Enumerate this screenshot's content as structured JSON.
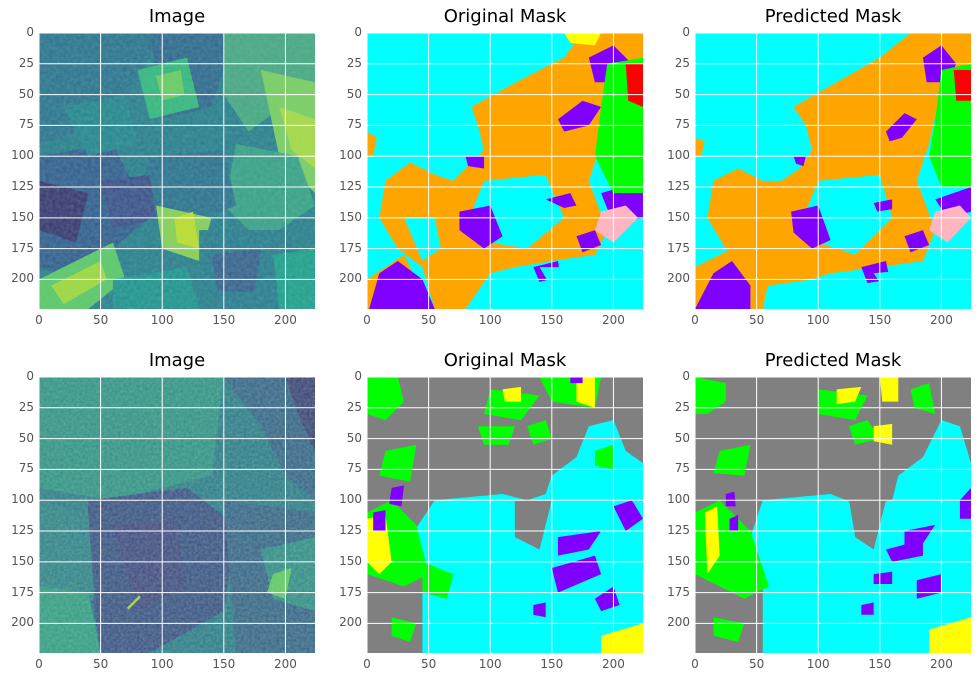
{
  "colors": {
    "cyan": "#00FFFF",
    "orange": "#FFA500",
    "violet": "#8000FF",
    "green": "#00FF00",
    "red": "#FF0000",
    "pink": "#FFB6C1",
    "yellow": "#FFFF00",
    "gray": "#808080"
  },
  "chart_data": [
    {
      "type": "image",
      "title": "Image",
      "row": 1,
      "col": 1,
      "xlim": [
        0,
        224
      ],
      "ylim": [
        224,
        0
      ],
      "xticks": [
        "0",
        "50",
        "100",
        "150",
        "200"
      ],
      "yticks": [
        "0",
        "25",
        "50",
        "75",
        "100",
        "125",
        "150",
        "175",
        "200"
      ],
      "grid": true,
      "colormap": "viridis"
    },
    {
      "type": "image",
      "title": "Original Mask",
      "row": 1,
      "col": 2,
      "xlim": [
        0,
        224
      ],
      "ylim": [
        224,
        0
      ],
      "xticks": [
        "0",
        "50",
        "100",
        "150",
        "200"
      ],
      "yticks": [
        "0",
        "25",
        "50",
        "75",
        "100",
        "125",
        "150",
        "175",
        "200"
      ],
      "grid": true
    },
    {
      "type": "image",
      "title": "Predicted Mask",
      "row": 1,
      "col": 3,
      "xlim": [
        0,
        224
      ],
      "ylim": [
        224,
        0
      ],
      "xticks": [
        "0",
        "50",
        "100",
        "150",
        "200"
      ],
      "yticks": [
        "0",
        "25",
        "50",
        "75",
        "100",
        "125",
        "150",
        "175",
        "200"
      ],
      "grid": true
    },
    {
      "type": "image",
      "title": "Image",
      "row": 2,
      "col": 1,
      "xlim": [
        0,
        224
      ],
      "ylim": [
        224,
        0
      ],
      "xticks": [
        "0",
        "50",
        "100",
        "150",
        "200"
      ],
      "yticks": [
        "0",
        "25",
        "50",
        "75",
        "100",
        "125",
        "150",
        "175",
        "200"
      ],
      "grid": true,
      "colormap": "viridis"
    },
    {
      "type": "image",
      "title": "Original Mask",
      "row": 2,
      "col": 2,
      "xlim": [
        0,
        224
      ],
      "ylim": [
        224,
        0
      ],
      "xticks": [
        "0",
        "50",
        "100",
        "150",
        "200"
      ],
      "yticks": [
        "0",
        "25",
        "50",
        "75",
        "100",
        "125",
        "150",
        "175",
        "200"
      ],
      "grid": true
    },
    {
      "type": "image",
      "title": "Predicted Mask",
      "row": 2,
      "col": 3,
      "xlim": [
        0,
        224
      ],
      "ylim": [
        224,
        0
      ],
      "xticks": [
        "0",
        "50",
        "100",
        "150",
        "200"
      ],
      "yticks": [
        "0",
        "25",
        "50",
        "75",
        "100",
        "125",
        "150",
        "175",
        "200"
      ],
      "grid": true
    }
  ]
}
